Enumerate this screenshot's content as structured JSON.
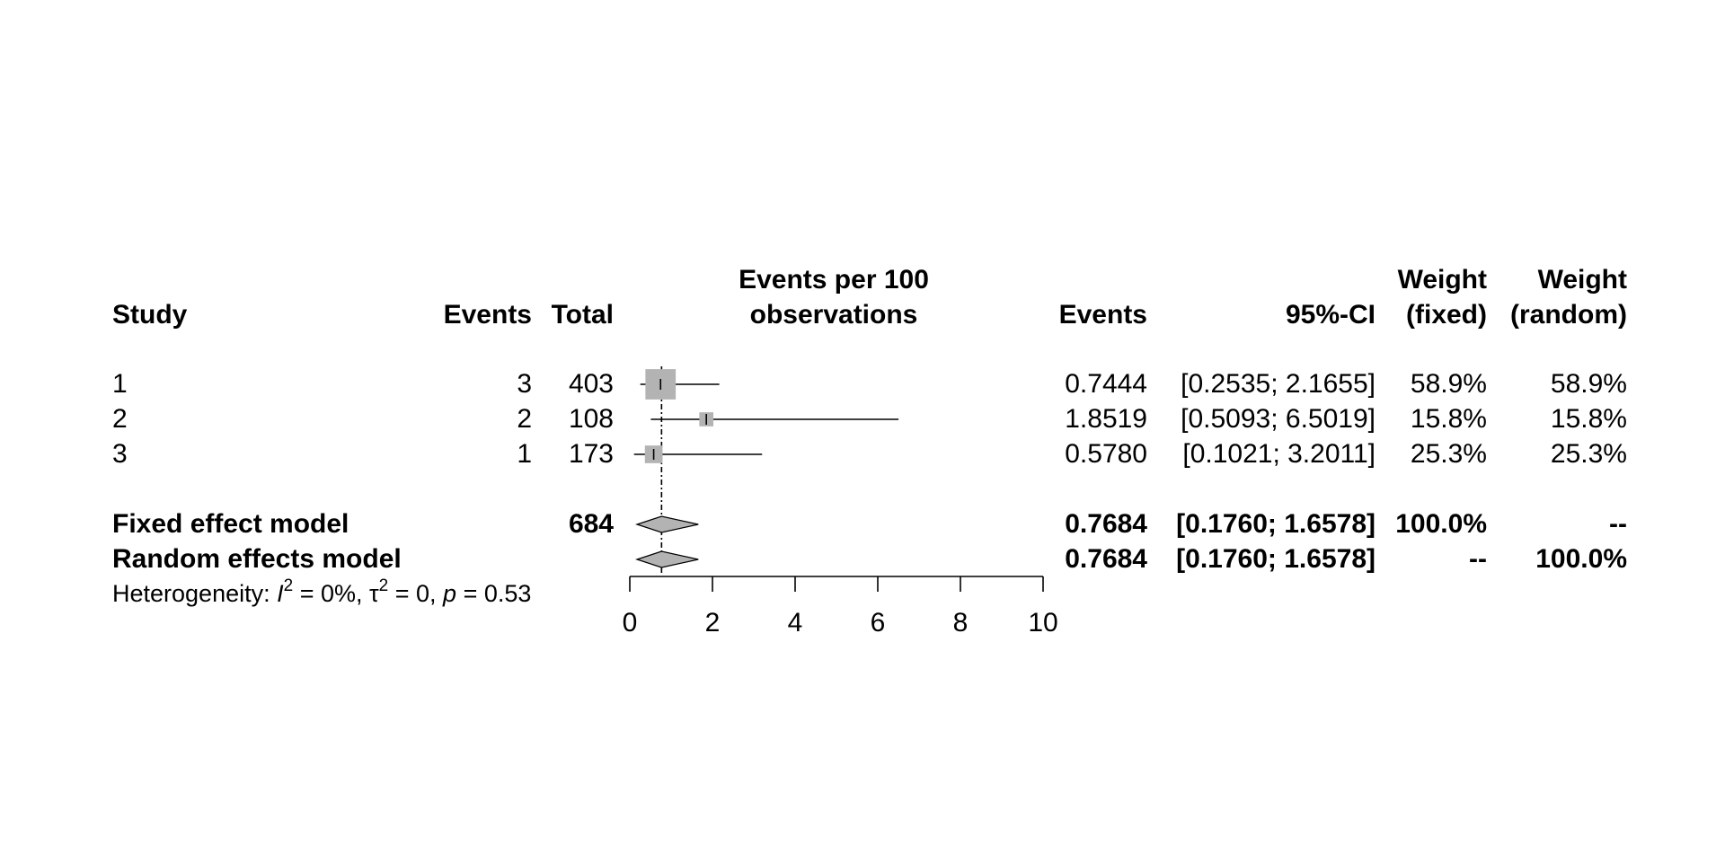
{
  "chart_data": {
    "type": "forest",
    "title": "",
    "headers": {
      "study": "Study",
      "events": "Events",
      "total": "Total",
      "plot_line1": "Events per 100",
      "plot_line2": "observations",
      "est": "Events",
      "ci": "95%-CI",
      "wf_line1": "Weight",
      "wf_line2": "(fixed)",
      "wr_line1": "Weight",
      "wr_line2": "(random)"
    },
    "studies": [
      {
        "label": "1",
        "events": "3",
        "total": "403",
        "est": 0.7444,
        "lower": 0.2535,
        "upper": 2.1655,
        "est_text": "0.7444",
        "ci_text": "[0.2535; 2.1655]",
        "w_fixed": "58.9%",
        "w_random": "58.9%",
        "weight": 58.9
      },
      {
        "label": "2",
        "events": "2",
        "total": "108",
        "est": 1.8519,
        "lower": 0.5093,
        "upper": 6.5019,
        "est_text": "1.8519",
        "ci_text": "[0.5093; 6.5019]",
        "w_fixed": "15.8%",
        "w_random": "15.8%",
        "weight": 15.8
      },
      {
        "label": "3",
        "events": "1",
        "total": "173",
        "est": 0.578,
        "lower": 0.1021,
        "upper": 3.2011,
        "est_text": "0.5780",
        "ci_text": "[0.1021; 3.2011]",
        "w_fixed": "25.3%",
        "w_random": "25.3%",
        "weight": 25.3
      }
    ],
    "pooled": [
      {
        "label": "Fixed effect model",
        "total": "684",
        "est": 0.7684,
        "lower": 0.176,
        "upper": 1.6578,
        "est_text": "0.7684",
        "ci_text": "[0.1760; 1.6578]",
        "w_fixed": "100.0%",
        "w_random": "--"
      },
      {
        "label": "Random effects model",
        "total": "",
        "est": 0.7684,
        "lower": 0.176,
        "upper": 1.6578,
        "est_text": "0.7684",
        "ci_text": "[0.1760; 1.6578]",
        "w_fixed": "--",
        "w_random": "100.0%"
      }
    ],
    "heterogeneity": {
      "prefix": "Heterogeneity: ",
      "i_symbol": "I",
      "sq": "2",
      "i2_value": " = 0%, ",
      "tau_symbol": "τ",
      "tau_value": " = 0, ",
      "p_symbol": "p",
      "p_value": " = 0.53"
    },
    "x_axis": {
      "range": [
        0,
        10
      ],
      "ticks": [
        0,
        2,
        4,
        6,
        8,
        10
      ],
      "reference_line": 0.7684
    },
    "colors": {
      "box": "#b3b3b3",
      "diamond": "#b3b3b3",
      "line": "#000000"
    }
  }
}
